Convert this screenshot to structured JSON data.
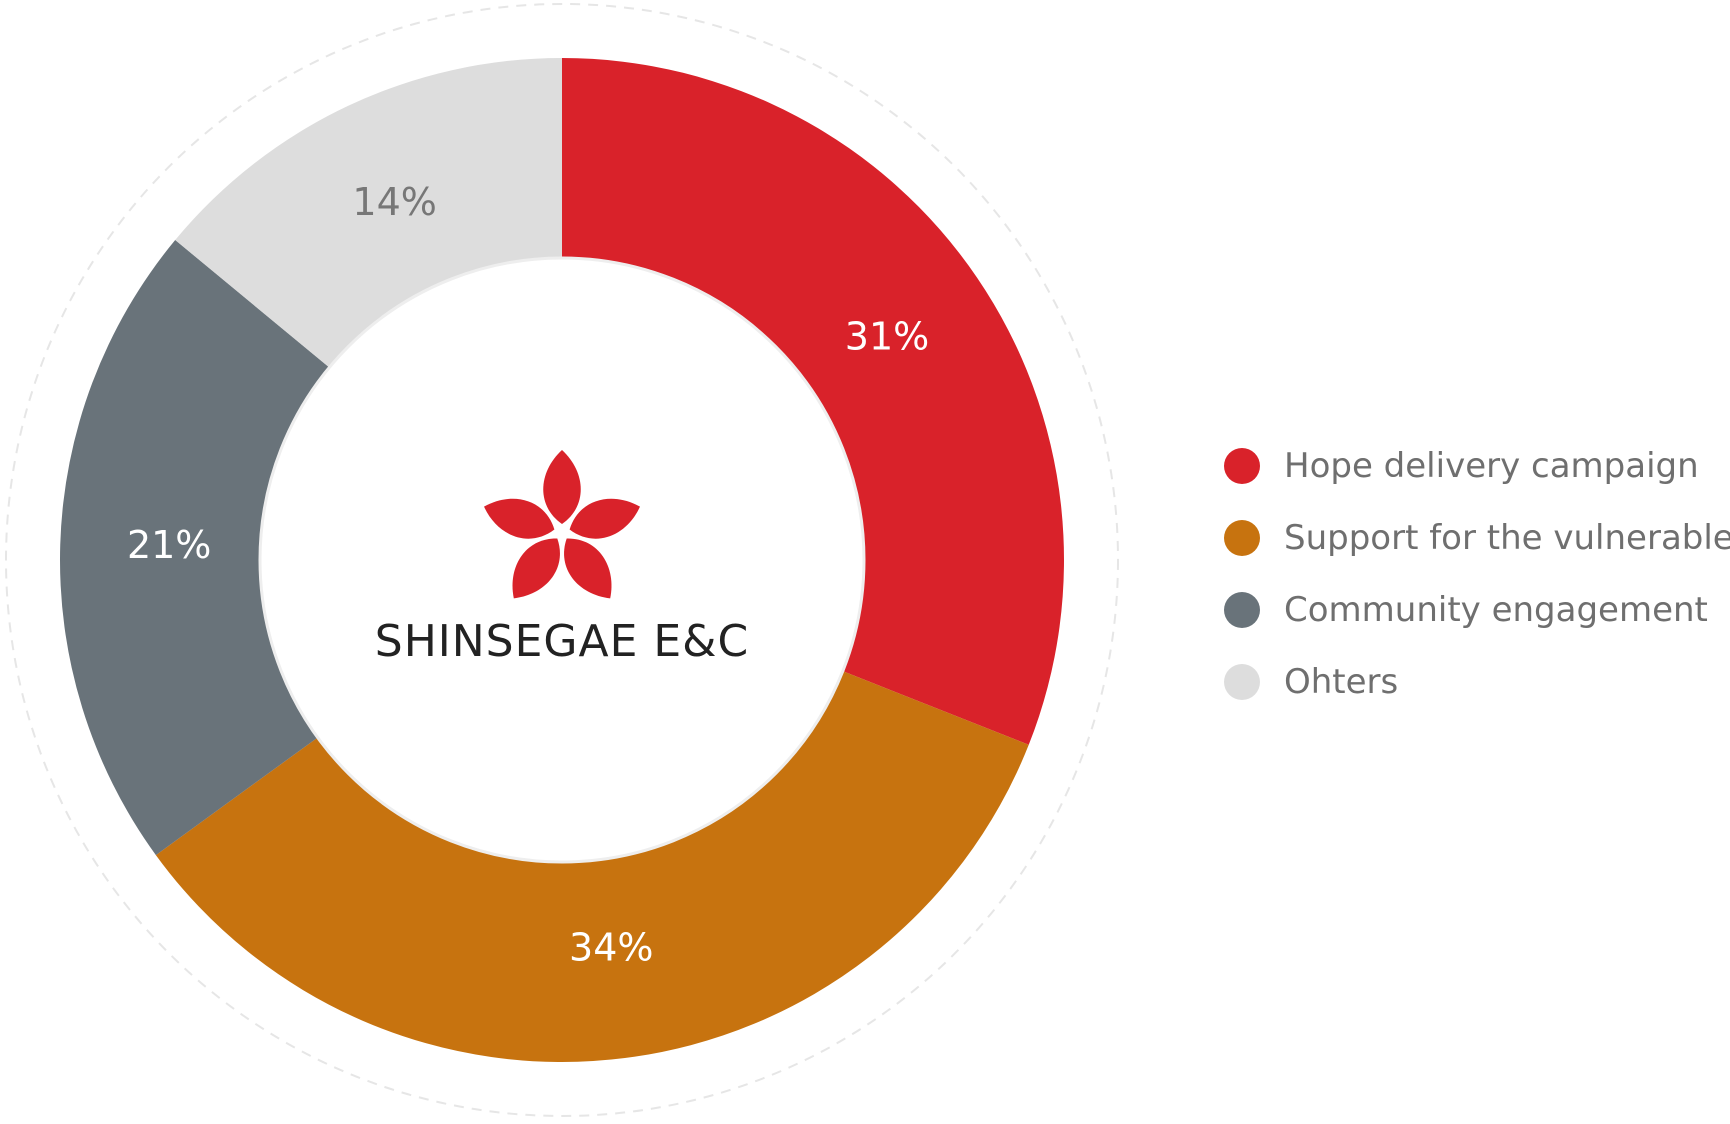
{
  "chart_data": {
    "type": "pie",
    "title": "",
    "categories": [
      "Hope delivery campaign",
      "Support for the vulnerable",
      "Community engagement",
      "Ohters"
    ],
    "values": [
      31,
      34,
      21,
      14
    ],
    "value_labels": [
      "31%",
      "34%",
      "21%",
      "14%"
    ],
    "colors": [
      "#d9222a",
      "#c7730f",
      "#69737a",
      "#dddddd"
    ],
    "label_colors": [
      "#ffffff",
      "#ffffff",
      "#ffffff",
      "#777777"
    ],
    "donut": true,
    "start_angle": "12 o'clock",
    "direction": "clockwise",
    "legend_position": "right"
  },
  "center": {
    "brand": "SHINSEGAE E&C",
    "logo_icon": "flower-logo-icon",
    "logo_color": "#d9222a"
  }
}
